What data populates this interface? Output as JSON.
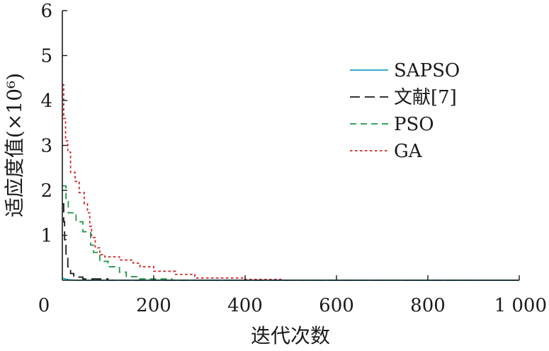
{
  "chart_data": {
    "type": "line",
    "title": "",
    "xlabel": "迭代次数",
    "ylabel": "适应度值(×10⁶)",
    "xlim": [
      0,
      1000
    ],
    "ylim": [
      0,
      6
    ],
    "x_ticks": [
      0,
      200,
      400,
      600,
      800,
      1000
    ],
    "x_tick_labels": [
      "0",
      "200",
      "400",
      "600",
      "800",
      "1 000"
    ],
    "y_ticks": [
      1,
      2,
      3,
      4,
      5,
      6
    ],
    "y_tick_labels": [
      "1",
      "2",
      "3",
      "4",
      "5",
      "6"
    ],
    "grid": false,
    "legend_position": "right",
    "series": [
      {
        "name": "SAPSO",
        "color": "#1aa3c8",
        "dash": "solid",
        "points": [
          [
            0,
            0.05
          ],
          [
            6,
            0.03
          ],
          [
            15,
            0.01
          ],
          [
            30,
            0.0
          ],
          [
            1000,
            0.0
          ]
        ]
      },
      {
        "name": "文献[7]",
        "color": "#1a1a1a",
        "dash": "long-dash",
        "points": [
          [
            0,
            1.7
          ],
          [
            3,
            1.7
          ],
          [
            3,
            1.3
          ],
          [
            5,
            1.3
          ],
          [
            5,
            0.9
          ],
          [
            8,
            0.9
          ],
          [
            8,
            0.55
          ],
          [
            12,
            0.55
          ],
          [
            12,
            0.3
          ],
          [
            18,
            0.3
          ],
          [
            18,
            0.15
          ],
          [
            25,
            0.15
          ],
          [
            25,
            0.07
          ],
          [
            45,
            0.07
          ],
          [
            45,
            0.03
          ],
          [
            100,
            0.03
          ],
          [
            100,
            0.0
          ],
          [
            1000,
            0.0
          ]
        ]
      },
      {
        "name": "PSO",
        "color": "#1f9a4a",
        "dash": "dash",
        "points": [
          [
            0,
            2.1
          ],
          [
            8,
            2.1
          ],
          [
            8,
            1.75
          ],
          [
            13,
            1.75
          ],
          [
            13,
            1.5
          ],
          [
            30,
            1.5
          ],
          [
            30,
            1.3
          ],
          [
            45,
            1.3
          ],
          [
            45,
            1.08
          ],
          [
            62,
            1.08
          ],
          [
            62,
            0.78
          ],
          [
            68,
            0.78
          ],
          [
            68,
            0.62
          ],
          [
            82,
            0.62
          ],
          [
            82,
            0.42
          ],
          [
            100,
            0.42
          ],
          [
            100,
            0.3
          ],
          [
            125,
            0.3
          ],
          [
            125,
            0.18
          ],
          [
            140,
            0.18
          ],
          [
            140,
            0.08
          ],
          [
            165,
            0.08
          ],
          [
            165,
            0.03
          ],
          [
            240,
            0.03
          ],
          [
            240,
            0.0
          ],
          [
            1000,
            0.0
          ]
        ]
      },
      {
        "name": "GA",
        "color": "#d62728",
        "dash": "dot",
        "points": [
          [
            0,
            4.35
          ],
          [
            3,
            4.35
          ],
          [
            3,
            3.6
          ],
          [
            7,
            3.6
          ],
          [
            7,
            3.1
          ],
          [
            12,
            3.1
          ],
          [
            12,
            2.85
          ],
          [
            18,
            2.85
          ],
          [
            18,
            2.4
          ],
          [
            28,
            2.4
          ],
          [
            28,
            2.2
          ],
          [
            37,
            2.2
          ],
          [
            37,
            1.95
          ],
          [
            48,
            1.95
          ],
          [
            48,
            1.7
          ],
          [
            55,
            1.7
          ],
          [
            55,
            1.5
          ],
          [
            60,
            1.5
          ],
          [
            60,
            1.2
          ],
          [
            64,
            1.2
          ],
          [
            64,
            0.95
          ],
          [
            72,
            0.95
          ],
          [
            72,
            0.72
          ],
          [
            82,
            0.72
          ],
          [
            82,
            0.57
          ],
          [
            93,
            0.57
          ],
          [
            93,
            0.52
          ],
          [
            125,
            0.52
          ],
          [
            125,
            0.45
          ],
          [
            155,
            0.45
          ],
          [
            155,
            0.38
          ],
          [
            170,
            0.38
          ],
          [
            170,
            0.3
          ],
          [
            200,
            0.3
          ],
          [
            200,
            0.2
          ],
          [
            248,
            0.2
          ],
          [
            248,
            0.13
          ],
          [
            290,
            0.13
          ],
          [
            290,
            0.05
          ],
          [
            400,
            0.05
          ],
          [
            400,
            0.02
          ],
          [
            480,
            0.02
          ],
          [
            480,
            0.0
          ],
          [
            1000,
            0.0
          ]
        ]
      }
    ]
  }
}
